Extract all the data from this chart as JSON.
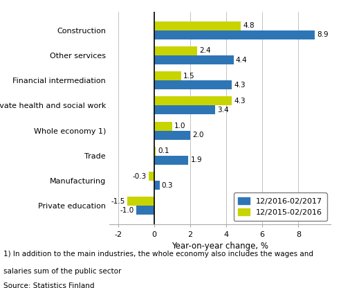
{
  "categories": [
    "Construction",
    "Other services",
    "Financial intermediation",
    "Private health and social work",
    "Whole economy 1)",
    "Trade",
    "Manufacturing",
    "Private education"
  ],
  "series1_label": "12/2016-02/2017",
  "series2_label": "12/2015-02/2016",
  "series1_values": [
    8.9,
    4.4,
    4.3,
    3.4,
    2.0,
    1.9,
    0.3,
    -1.0
  ],
  "series2_values": [
    4.8,
    2.4,
    1.5,
    4.3,
    1.0,
    0.1,
    -0.3,
    -1.5
  ],
  "color1": "#2E75B6",
  "color2": "#C8D400",
  "xlabel": "Year-on-year change, %",
  "xlim": [
    -2.5,
    9.8
  ],
  "xticks": [
    -2,
    0,
    2,
    4,
    6,
    8
  ],
  "footnote1": "1) In addition to the main industries, the whole economy also includes the wages and",
  "footnote2": "salaries sum of the public sector",
  "source": "Source: Statistics Finland",
  "bar_height": 0.36,
  "label_fontsize": 7.5,
  "tick_fontsize": 8.0,
  "xlabel_fontsize": 8.5,
  "legend_fontsize": 8.0,
  "footnote_fontsize": 7.5
}
